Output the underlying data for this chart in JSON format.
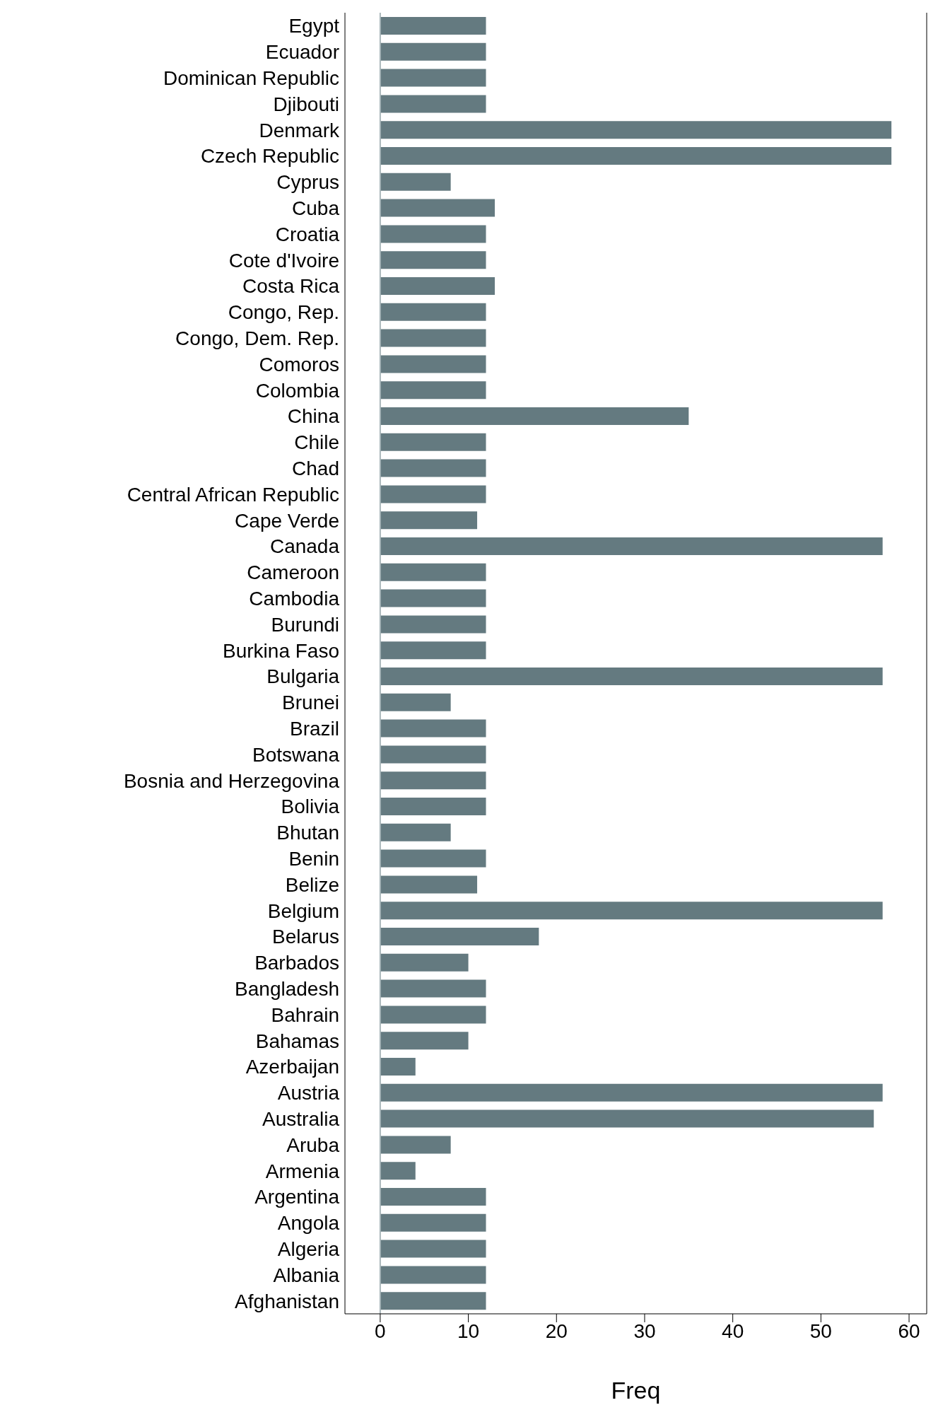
{
  "chart_data": {
    "type": "bar",
    "orientation": "horizontal",
    "xlabel": "Freq",
    "color": "#647a80",
    "categories": [
      "Egypt",
      "Ecuador",
      "Dominican Republic",
      "Djibouti",
      "Denmark",
      "Czech Republic",
      "Cyprus",
      "Cuba",
      "Croatia",
      "Cote d'Ivoire",
      "Costa Rica",
      "Congo, Rep.",
      "Congo, Dem. Rep.",
      "Comoros",
      "Colombia",
      "China",
      "Chile",
      "Chad",
      "Central African Republic",
      "Cape Verde",
      "Canada",
      "Cameroon",
      "Cambodia",
      "Burundi",
      "Burkina Faso",
      "Bulgaria",
      "Brunei",
      "Brazil",
      "Botswana",
      "Bosnia and Herzegovina",
      "Bolivia",
      "Bhutan",
      "Benin",
      "Belize",
      "Belgium",
      "Belarus",
      "Barbados",
      "Bangladesh",
      "Bahrain",
      "Bahamas",
      "Azerbaijan",
      "Austria",
      "Australia",
      "Aruba",
      "Armenia",
      "Argentina",
      "Angola",
      "Algeria",
      "Albania",
      "Afghanistan"
    ],
    "values": [
      12,
      12,
      12,
      12,
      58,
      58,
      8,
      13,
      12,
      12,
      13,
      12,
      12,
      12,
      12,
      35,
      12,
      12,
      12,
      11,
      57,
      12,
      12,
      12,
      12,
      57,
      8,
      12,
      12,
      12,
      12,
      8,
      12,
      11,
      57,
      18,
      10,
      12,
      12,
      10,
      4,
      57,
      56,
      8,
      4,
      12,
      12,
      12,
      12,
      12
    ],
    "xlim": [
      -4,
      62
    ],
    "xticks": [
      0,
      10,
      20,
      30,
      40,
      50,
      60
    ],
    "ref_lines": [
      {
        "axis": "x",
        "value": 0,
        "color": "#a9b6ba"
      }
    ]
  }
}
